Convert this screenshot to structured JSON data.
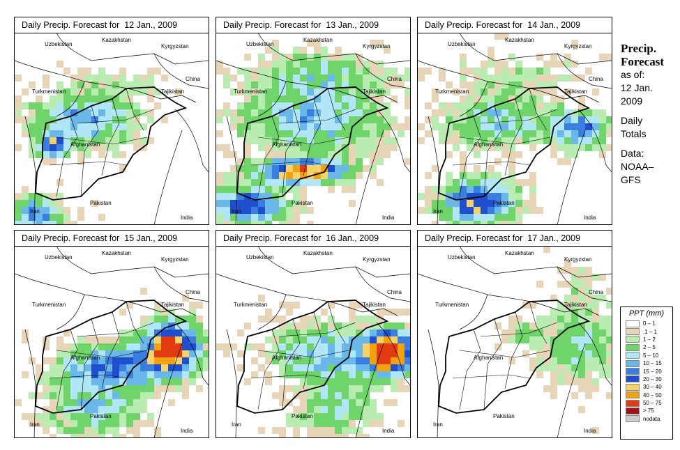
{
  "panels": [
    {
      "title": "Daily Precip. Forecast for  12 Jan., 2009",
      "id": 0
    },
    {
      "title": "Daily Precip. Forecast for  13 Jan., 2009",
      "id": 1
    },
    {
      "title": "Daily Precip. Forecast for  14 Jan., 2009",
      "id": 2
    },
    {
      "title": "Daily Precip. Forecast for  15 Jan., 2009",
      "id": 3
    },
    {
      "title": "Daily Precip. Forecast for  16 Jan., 2009",
      "id": 4
    },
    {
      "title": "Daily Precip. Forecast for  17 Jan., 2009",
      "id": 5
    }
  ],
  "countries": {
    "uzbekistan": "Uzbekistan",
    "kazakhstan": "Kazakhstan",
    "kyrgyzstan": "Kyrgyzstan",
    "china": "China",
    "turkmenistan": "Turkmenistan",
    "tajikistan": "Tajikistan",
    "afghanistan": "Afghanistan",
    "pakistan": "Pakistan",
    "iran": "Iran",
    "india": "India"
  },
  "side": {
    "heading_line1": "Precip.",
    "heading_line2": "Forecast",
    "asof": "as of:",
    "date_line1": "12 Jan.",
    "date_line2": "2009",
    "daily_line1": "Daily",
    "daily_line2": "Totals",
    "data_line1": "Data:",
    "data_line2": "NOAA–",
    "data_line3": "GFS"
  },
  "legend": {
    "title": "PPT (mm)",
    "items": [
      {
        "label": "0 – 1",
        "color": "#ffffff"
      },
      {
        "label": ".1 – 1",
        "color": "#e8d5b7"
      },
      {
        "label": "1 – 2",
        "color": "#b8ecb0"
      },
      {
        "label": "2 – 5",
        "color": "#6fd46a"
      },
      {
        "label": "5 – 10",
        "color": "#b0e6f5"
      },
      {
        "label": "10 – 15",
        "color": "#6ab8ea"
      },
      {
        "label": "15 – 20",
        "color": "#3a7ee0"
      },
      {
        "label": "20 – 30",
        "color": "#1f4fcf"
      },
      {
        "label": "30 – 40",
        "color": "#f5d36a"
      },
      {
        "label": "40 – 50",
        "color": "#f2a20f"
      },
      {
        "label": "50 – 75",
        "color": "#e23b12"
      },
      {
        "label": "> 75",
        "color": "#a3141a"
      },
      {
        "label": "nodata",
        "color": "#cccccc"
      }
    ]
  }
}
